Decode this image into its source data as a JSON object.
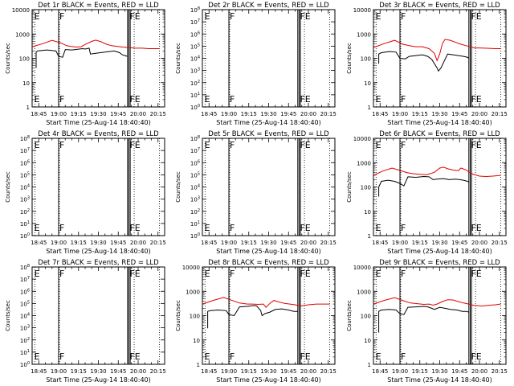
{
  "chart_data": [
    {
      "type": "line",
      "title": "Det 1r BLACK = Events, RED = LLD",
      "ylabel": "Counts/sec",
      "xlabel": "Start Time (25-Aug-14 18:40:40)",
      "x_ticks": [
        "18:45",
        "19:00",
        "19:15",
        "19:30",
        "19:45",
        "20:00",
        "20:15"
      ],
      "y_ticks": [
        "1",
        "10",
        "100",
        "1000",
        "10000"
      ],
      "y_scale": "log",
      "ylim": [
        1,
        10000
      ],
      "xlim": [
        "18:40",
        "20:20"
      ],
      "markers": [
        {
          "text": "E",
          "x": "18:41"
        },
        {
          "text": "F",
          "x": "19:00"
        },
        {
          "text": "FE",
          "x": "19:53"
        }
      ],
      "series": [
        {
          "color": "#e00000",
          "x": [
            "18:40",
            "18:48",
            "18:55",
            "19:02",
            "19:06",
            "19:09",
            "19:13",
            "19:17",
            "19:20",
            "19:25",
            "19:28",
            "19:32",
            "19:36",
            "19:40",
            "19:44",
            "19:48",
            "19:52",
            "19:55",
            "19:58",
            "20:03",
            "20:08",
            "20:12",
            "20:16"
          ],
          "y": [
            300,
            400,
            550,
            420,
            330,
            310,
            290,
            300,
            370,
            500,
            560,
            480,
            380,
            330,
            310,
            290,
            280,
            270,
            260,
            260,
            250,
            250,
            250
          ]
        },
        {
          "color": "#000000",
          "x": [
            "18:43",
            "18:43",
            "18:44",
            "18:51",
            "18:58",
            "19:00",
            "19:03",
            "19:05",
            "19:10",
            "19:18",
            "19:20",
            "19:23",
            "19:24",
            "19:28",
            "19:35",
            "19:42",
            "19:46",
            "19:48",
            "19:50",
            "19:52"
          ],
          "y": [
            40,
            180,
            200,
            220,
            200,
            120,
            110,
            230,
            220,
            250,
            240,
            260,
            150,
            160,
            180,
            200,
            170,
            140,
            130,
            120
          ]
        }
      ]
    },
    {
      "type": "line",
      "title": "Det 2r BLACK = Events, RED = LLD",
      "ylabel": "Counts/sec",
      "xlabel": "Start Time (25-Aug-14 18:40:40)",
      "x_ticks": [
        "18:45",
        "19:00",
        "19:15",
        "19:30",
        "19:45",
        "20:00",
        "20:15"
      ],
      "y_ticks": [
        "10^0",
        "10^1",
        "10^2",
        "10^3",
        "10^4",
        "10^5",
        "10^6",
        "10^7",
        "10^8"
      ],
      "y_scale": "log",
      "ylim": [
        1,
        100000000
      ],
      "xlim": [
        "18:40",
        "20:20"
      ],
      "markers": [
        {
          "text": "E",
          "x": "18:41"
        },
        {
          "text": "F",
          "x": "19:00"
        },
        {
          "text": "FE",
          "x": "19:53"
        }
      ],
      "series": []
    },
    {
      "type": "line",
      "title": "Det 3r BLACK = Events, RED = LLD",
      "ylabel": "Counts/sec",
      "xlabel": "Start Time (25-Aug-14 18:40:40)",
      "x_ticks": [
        "18:45",
        "19:00",
        "19:15",
        "19:30",
        "19:45",
        "20:00",
        "20:15"
      ],
      "y_ticks": [
        "1",
        "10",
        "100",
        "1000",
        "10000"
      ],
      "y_scale": "log",
      "ylim": [
        1,
        10000
      ],
      "xlim": [
        "18:40",
        "20:20"
      ],
      "markers": [
        {
          "text": "E",
          "x": "18:41"
        },
        {
          "text": "F",
          "x": "19:00"
        },
        {
          "text": "FE",
          "x": "19:53"
        }
      ],
      "series": [
        {
          "color": "#e00000",
          "x": [
            "18:40",
            "18:48",
            "18:56",
            "19:02",
            "19:07",
            "19:12",
            "19:17",
            "19:22",
            "19:26",
            "19:28",
            "19:30",
            "19:32",
            "19:34",
            "19:38",
            "19:42",
            "19:46",
            "19:50",
            "19:56",
            "20:04",
            "20:12",
            "20:16"
          ],
          "y": [
            280,
            400,
            550,
            380,
            330,
            300,
            300,
            250,
            160,
            80,
            150,
            400,
            600,
            550,
            450,
            380,
            330,
            270,
            260,
            250,
            250
          ]
        },
        {
          "color": "#000000",
          "x": [
            "18:44",
            "18:44",
            "18:46",
            "18:52",
            "18:57",
            "19:00",
            "19:04",
            "19:07",
            "19:12",
            "19:17",
            "19:21",
            "19:24",
            "19:26",
            "19:28",
            "19:29",
            "19:31",
            "19:33",
            "19:36",
            "19:40",
            "19:44",
            "19:48",
            "19:51",
            "19:52"
          ],
          "y": [
            60,
            150,
            170,
            190,
            180,
            100,
            95,
            120,
            130,
            140,
            120,
            90,
            60,
            40,
            30,
            40,
            70,
            150,
            140,
            130,
            120,
            110,
            100
          ]
        }
      ]
    },
    {
      "type": "line",
      "title": "Det 4r BLACK = Events, RED = LLD",
      "ylabel": "Counts/sec",
      "xlabel": "Start Time (25-Aug-14 18:40:40)",
      "x_ticks": [
        "18:45",
        "19:00",
        "19:15",
        "19:30",
        "19:45",
        "20:00",
        "20:15"
      ],
      "y_ticks": [
        "10^0",
        "10^1",
        "10^2",
        "10^3",
        "10^4",
        "10^5",
        "10^6",
        "10^7",
        "10^8"
      ],
      "y_scale": "log",
      "ylim": [
        1,
        100000000
      ],
      "xlim": [
        "18:40",
        "20:20"
      ],
      "markers": [
        {
          "text": "E",
          "x": "18:41"
        },
        {
          "text": "F",
          "x": "19:00"
        },
        {
          "text": "FE",
          "x": "19:53"
        }
      ],
      "series": []
    },
    {
      "type": "line",
      "title": "Det 5r BLACK = Events, RED = LLD",
      "ylabel": "Counts/sec",
      "xlabel": "Start Time (25-Aug-14 18:40:40)",
      "x_ticks": [
        "18:45",
        "19:00",
        "19:15",
        "19:30",
        "19:45",
        "20:00",
        "20:15"
      ],
      "y_ticks": [
        "10^0",
        "10^1",
        "10^2",
        "10^3",
        "10^4",
        "10^5",
        "10^6",
        "10^7",
        "10^8"
      ],
      "y_scale": "log",
      "ylim": [
        1,
        100000000
      ],
      "xlim": [
        "18:40",
        "20:20"
      ],
      "markers": [
        {
          "text": "E",
          "x": "18:41"
        },
        {
          "text": "F",
          "x": "19:00"
        },
        {
          "text": "FE",
          "x": "19:53"
        }
      ],
      "series": []
    },
    {
      "type": "line",
      "title": "Det 6r BLACK = Events, RED = LLD",
      "ylabel": "Counts/sec",
      "xlabel": "Start Time (25-Aug-14 18:40:40)",
      "x_ticks": [
        "18:45",
        "19:00",
        "19:15",
        "19:30",
        "19:45",
        "20:00",
        "20:15"
      ],
      "y_ticks": [
        "1",
        "10",
        "100",
        "1000",
        "10000"
      ],
      "y_scale": "log",
      "ylim": [
        1,
        10000
      ],
      "xlim": [
        "18:40",
        "20:20"
      ],
      "markers": [
        {
          "text": "E",
          "x": "18:41"
        },
        {
          "text": "F",
          "x": "19:00"
        },
        {
          "text": "FE",
          "x": "19:53"
        }
      ],
      "series": [
        {
          "color": "#e00000",
          "x": [
            "18:40",
            "18:47",
            "18:54",
            "19:00",
            "19:05",
            "19:10",
            "19:15",
            "19:20",
            "19:26",
            "19:30",
            "19:33",
            "19:36",
            "19:40",
            "19:44",
            "19:46",
            "19:50",
            "19:54",
            "20:00",
            "20:05",
            "20:10",
            "20:16"
          ],
          "y": [
            300,
            450,
            600,
            480,
            390,
            350,
            330,
            320,
            400,
            600,
            650,
            560,
            500,
            470,
            600,
            500,
            350,
            280,
            270,
            280,
            300
          ]
        },
        {
          "color": "#000000",
          "x": [
            "18:44",
            "18:44",
            "18:46",
            "18:51",
            "18:56",
            "19:00",
            "19:03",
            "19:06",
            "19:12",
            "19:18",
            "19:22",
            "19:25",
            "19:28",
            "19:33",
            "19:37",
            "19:42",
            "19:45",
            "19:48",
            "19:51",
            "19:52"
          ],
          "y": [
            40,
            100,
            170,
            190,
            170,
            140,
            110,
            260,
            250,
            270,
            260,
            200,
            210,
            220,
            200,
            210,
            200,
            190,
            170,
            160
          ]
        }
      ]
    },
    {
      "type": "line",
      "title": "Det 7r BLACK = Events, RED = LLD",
      "ylabel": "Counts/sec",
      "xlabel": "Start Time (25-Aug-14 18:40:40)",
      "x_ticks": [
        "18:45",
        "19:00",
        "19:15",
        "19:30",
        "19:45",
        "20:00",
        "20:15"
      ],
      "y_ticks": [
        "10^0",
        "10^1",
        "10^2",
        "10^3",
        "10^4",
        "10^5",
        "10^6",
        "10^7",
        "10^8"
      ],
      "y_scale": "log",
      "ylim": [
        1,
        100000000
      ],
      "xlim": [
        "18:40",
        "20:20"
      ],
      "markers": [
        {
          "text": "E",
          "x": "18:41"
        },
        {
          "text": "F",
          "x": "19:00"
        },
        {
          "text": "FE",
          "x": "19:53"
        }
      ],
      "series": []
    },
    {
      "type": "line",
      "title": "Det 8r BLACK = Events, RED = LLD",
      "ylabel": "Counts/sec",
      "xlabel": "Start Time (25-Aug-14 18:40:40)",
      "x_ticks": [
        "18:45",
        "19:00",
        "19:15",
        "19:30",
        "19:45",
        "20:00",
        "20:15"
      ],
      "y_ticks": [
        "1",
        "10",
        "100",
        "1000",
        "10000"
      ],
      "y_scale": "log",
      "ylim": [
        1,
        10000
      ],
      "xlim": [
        "18:40",
        "20:20"
      ],
      "markers": [
        {
          "text": "E",
          "x": "18:41"
        },
        {
          "text": "F",
          "x": "19:00"
        },
        {
          "text": "FE",
          "x": "19:53"
        }
      ],
      "series": [
        {
          "color": "#e00000",
          "x": [
            "18:40",
            "18:48",
            "18:56",
            "19:02",
            "19:08",
            "19:14",
            "19:18",
            "19:22",
            "19:26",
            "19:28",
            "19:31",
            "19:34",
            "19:38",
            "19:42",
            "19:46",
            "19:50",
            "19:54",
            "20:00",
            "20:06",
            "20:12",
            "20:16"
          ],
          "y": [
            300,
            420,
            560,
            430,
            330,
            300,
            300,
            290,
            300,
            220,
            320,
            420,
            360,
            320,
            300,
            280,
            250,
            280,
            300,
            300,
            300
          ]
        },
        {
          "color": "#000000",
          "x": [
            "18:44",
            "18:44",
            "18:46",
            "18:52",
            "18:58",
            "19:00",
            "19:04",
            "19:08",
            "19:14",
            "19:19",
            "19:21",
            "19:24",
            "19:25",
            "19:27",
            "19:31",
            "19:35",
            "19:40",
            "19:45",
            "19:49",
            "19:52"
          ],
          "y": [
            30,
            150,
            160,
            170,
            160,
            110,
            100,
            230,
            240,
            260,
            250,
            160,
            100,
            120,
            140,
            180,
            190,
            170,
            150,
            150
          ]
        }
      ]
    },
    {
      "type": "line",
      "title": "Det 9r BLACK = Events, RED = LLD",
      "ylabel": "Counts/sec",
      "xlabel": "Start Time (25-Aug-14 18:40:40)",
      "x_ticks": [
        "18:45",
        "19:00",
        "19:15",
        "19:30",
        "19:45",
        "20:00",
        "20:15"
      ],
      "y_ticks": [
        "1",
        "10",
        "100",
        "1000",
        "10000"
      ],
      "y_scale": "log",
      "ylim": [
        1,
        10000
      ],
      "xlim": [
        "18:40",
        "20:20"
      ],
      "markers": [
        {
          "text": "E",
          "x": "18:41"
        },
        {
          "text": "F",
          "x": "19:00"
        },
        {
          "text": "FE",
          "x": "19:53"
        }
      ],
      "series": [
        {
          "color": "#e00000",
          "x": [
            "18:40",
            "18:48",
            "18:56",
            "19:02",
            "19:08",
            "19:13",
            "19:18",
            "19:22",
            "19:25",
            "19:28",
            "19:32",
            "19:36",
            "19:40",
            "19:44",
            "19:48",
            "19:52",
            "19:56",
            "20:02",
            "20:08",
            "20:12",
            "20:16"
          ],
          "y": [
            300,
            420,
            550,
            420,
            330,
            310,
            290,
            300,
            270,
            300,
            380,
            450,
            440,
            380,
            330,
            300,
            260,
            250,
            270,
            280,
            300
          ]
        },
        {
          "color": "#000000",
          "x": [
            "18:44",
            "18:44",
            "18:46",
            "18:52",
            "18:57",
            "19:00",
            "19:03",
            "19:06",
            "19:12",
            "19:18",
            "19:21",
            "19:24",
            "19:26",
            "19:30",
            "19:34",
            "19:38",
            "19:43",
            "19:47",
            "19:50",
            "19:52"
          ],
          "y": [
            20,
            150,
            170,
            180,
            170,
            120,
            110,
            220,
            230,
            240,
            230,
            200,
            180,
            220,
            200,
            180,
            170,
            150,
            150,
            140
          ]
        }
      ]
    }
  ]
}
